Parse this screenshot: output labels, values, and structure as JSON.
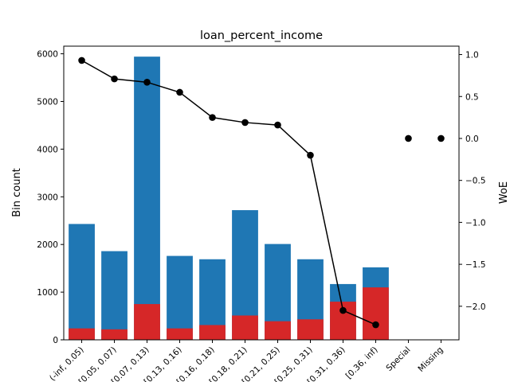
{
  "chart_data": {
    "type": "bar",
    "title": "loan_percent_income",
    "ylabel_left": "Bin count",
    "ylabel_right": "WoE",
    "categories": [
      "(-inf, 0.05)",
      "[0.05, 0.07)",
      "[0.07, 0.13)",
      "[0.13, 0.16)",
      "[0.16, 0.18)",
      "[0.18, 0.21)",
      "[0.21, 0.25)",
      "[0.25, 0.31)",
      "[0.31, 0.36)",
      "[0.36, inf)",
      "Special",
      "Missing"
    ],
    "series": [
      {
        "name": "",
        "kind": "bar",
        "axis": "left",
        "role": "total",
        "color": "#1f77b4",
        "values": [
          2430,
          1860,
          5940,
          1760,
          1690,
          2720,
          2010,
          1690,
          1170,
          1520,
          0,
          0
        ]
      },
      {
        "name": "",
        "kind": "bar",
        "axis": "left",
        "role": "event",
        "color": "#d62728",
        "values": [
          240,
          220,
          750,
          240,
          310,
          510,
          390,
          430,
          800,
          1100,
          0,
          0
        ]
      },
      {
        "name": "",
        "kind": "line",
        "axis": "right",
        "color": "#000000",
        "values": [
          0.93,
          0.71,
          0.67,
          0.55,
          0.25,
          0.19,
          0.16,
          -0.2,
          -2.05,
          -2.22,
          0.0,
          0.0
        ],
        "connected_count": 10
      }
    ],
    "ylim_left": [
      0,
      6160
    ],
    "yticks_left": [
      0,
      1000,
      2000,
      3000,
      4000,
      5000,
      6000
    ],
    "ylim_right": [
      -2.4,
      1.1
    ],
    "yticks_right": [
      -2.0,
      -1.5,
      -1.0,
      -0.5,
      0.0,
      0.5,
      1.0
    ],
    "ytick_labels_right": [
      "−2.0",
      "−1.5",
      "−1.0",
      "−0.5",
      "0.0",
      "0.5",
      "1.0"
    ],
    "grid": false,
    "legend": "none"
  }
}
